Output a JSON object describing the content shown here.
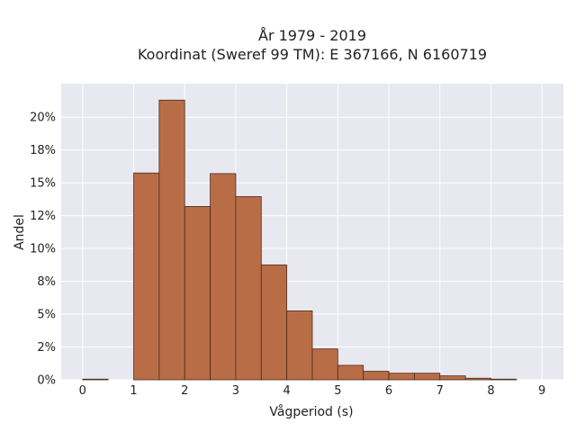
{
  "chart_data": {
    "type": "bar",
    "title_line1": "År 1979 - 2019",
    "title_line2": "Koordinat (Sweref 99 TM): E 367166, N 6160719",
    "xlabel": "Vågperiod (s)",
    "ylabel": "Andel",
    "bin_width": 0.5,
    "bins_start": [
      0,
      0.5,
      1.0,
      1.5,
      2.0,
      2.5,
      3.0,
      3.5,
      4.0,
      4.5,
      5.0,
      5.5,
      6.0,
      6.5,
      7.0,
      7.5,
      8.0,
      8.5
    ],
    "values": [
      0.0005,
      0.0,
      0.1575,
      0.213,
      0.132,
      0.157,
      0.1395,
      0.0875,
      0.0525,
      0.0235,
      0.011,
      0.0065,
      0.005,
      0.005,
      0.003,
      0.0012,
      0.0005,
      0.0
    ],
    "xlim": [
      -0.42,
      9.42
    ],
    "ylim": [
      0,
      0.2255
    ],
    "x_ticks": [
      0,
      1,
      2,
      3,
      4,
      5,
      6,
      7,
      8,
      9
    ],
    "x_tick_labels": [
      "0",
      "1",
      "2",
      "3",
      "4",
      "5",
      "6",
      "7",
      "8",
      "9"
    ],
    "y_ticks": [
      0,
      0.025,
      0.05,
      0.075,
      0.1,
      0.125,
      0.15,
      0.175,
      0.2
    ],
    "y_tick_labels": [
      "0%",
      "2%",
      "5%",
      "8%",
      "10%",
      "12%",
      "15%",
      "18%",
      "20%"
    ],
    "grid": true,
    "bar_color": "#b96d47",
    "bar_edge_color": "#4a2a1a",
    "plot_bg_color": "#e8e8f0",
    "grid_color": "#ffffff"
  }
}
